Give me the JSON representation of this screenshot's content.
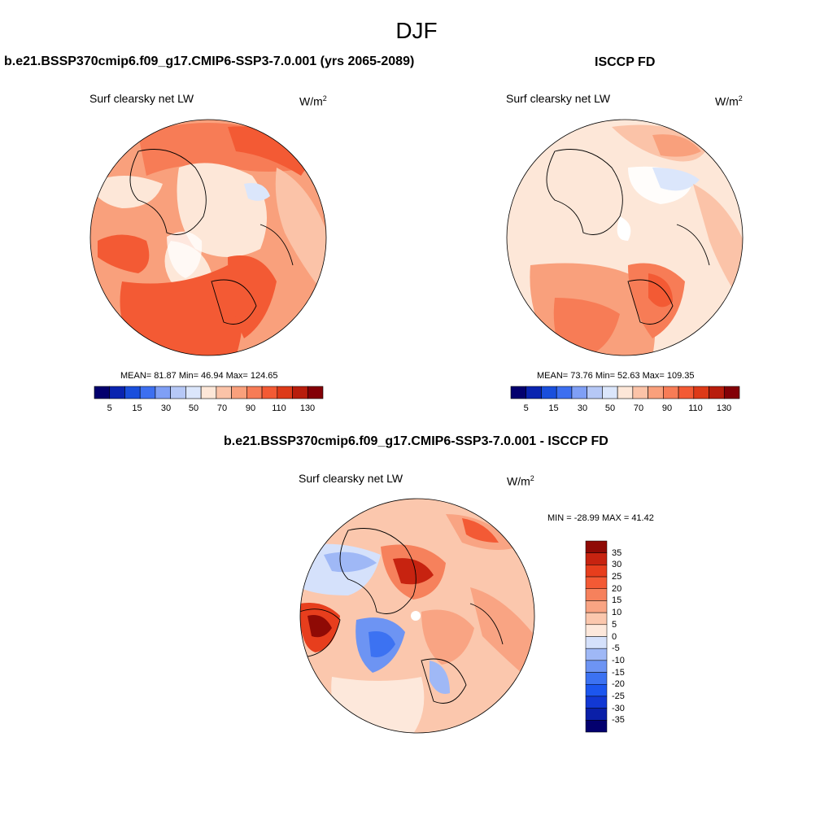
{
  "season": "DJF",
  "colors": {
    "seq": [
      "#03006e",
      "#0a24b0",
      "#1a4fdc",
      "#3d6ff0",
      "#7f9ff5",
      "#b6c8f6",
      "#dbe6fb",
      "#fde7d8",
      "#fbc3a8",
      "#f9a07c",
      "#f77c56",
      "#f35a34",
      "#dd3a18",
      "#b81d0c",
      "#830006"
    ],
    "diff": [
      "#03006e",
      "#0a1fa8",
      "#1238d4",
      "#1c56ef",
      "#3c72f2",
      "#6d94f3",
      "#9fb8f6",
      "#d5e1fb",
      "#fde8db",
      "#fbc7ad",
      "#f9a483",
      "#f6815c",
      "#f35a35",
      "#e73e1d",
      "#c72310",
      "#8f0a05"
    ],
    "land_outline": "#000000"
  },
  "panels": {
    "model": {
      "title": "b.e21.BSSP370cmip6.f09_g17.CMIP6-SSP3-7.0.001 (yrs 2065-2089)",
      "variable": "Surf clearsky net LW",
      "units": "W/m",
      "units_exp": "2",
      "stats": "MEAN=  81.87  Min=  46.94  Max= 124.65",
      "colorbar_ticks": [
        "5",
        "15",
        "30",
        "50",
        "70",
        "90",
        "110",
        "130"
      ]
    },
    "obs": {
      "title": "ISCCP FD",
      "variable": "Surf clearsky net LW",
      "units": "W/m",
      "units_exp": "2",
      "stats": "MEAN=  73.76  Min=  52.63  Max= 109.35",
      "colorbar_ticks": [
        "5",
        "15",
        "30",
        "50",
        "70",
        "90",
        "110",
        "130"
      ]
    },
    "diff": {
      "title": "b.e21.BSSP370cmip6.f09_g17.CMIP6-SSP3-7.0.001 - ISCCP FD",
      "variable": "Surf clearsky net LW",
      "units": "W/m",
      "units_exp": "2",
      "stats": "MIN = -28.99 MAX =  41.42",
      "colorbar_ticks": [
        "35",
        "30",
        "25",
        "20",
        "15",
        "10",
        "5",
        "0",
        "-5",
        "-10",
        "-15",
        "-20",
        "-25",
        "-30",
        "-35"
      ]
    }
  }
}
